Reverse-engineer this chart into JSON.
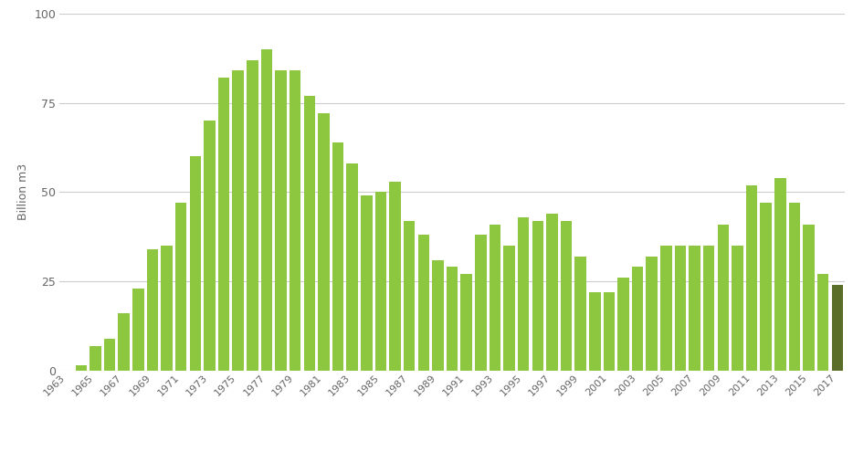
{
  "years": [
    1963,
    1964,
    1965,
    1966,
    1967,
    1968,
    1969,
    1970,
    1971,
    1972,
    1973,
    1974,
    1975,
    1976,
    1977,
    1978,
    1979,
    1980,
    1981,
    1982,
    1983,
    1984,
    1985,
    1986,
    1987,
    1988,
    1989,
    1990,
    1991,
    1992,
    1993,
    1994,
    1995,
    1996,
    1997,
    1998,
    1999,
    2000,
    2001,
    2002,
    2003,
    2004,
    2005,
    2006,
    2007,
    2008,
    2009,
    2010,
    2011,
    2012,
    2013,
    2014,
    2015,
    2016,
    2017
  ],
  "values": [
    0.1,
    1.5,
    7,
    9,
    16,
    23,
    34,
    35,
    47,
    60,
    70,
    82,
    84,
    87,
    90,
    84,
    84,
    77,
    72,
    64,
    58,
    49,
    50,
    53,
    42,
    38,
    31,
    29,
    27,
    38,
    41,
    35,
    43,
    42,
    44,
    42,
    32,
    22,
    22,
    26,
    29,
    32,
    35,
    35,
    35,
    35,
    41,
    35,
    52,
    47,
    54,
    47,
    41,
    27,
    24
  ],
  "bar_color": "#8dc63f",
  "last_bar_color": "#5a6e2a",
  "ylabel": "Billion m3",
  "ylim": [
    0,
    100
  ],
  "yticks": [
    0,
    25,
    50,
    75,
    100
  ],
  "background_color": "#ffffff",
  "grid_color": "#cccccc",
  "tick_label_color": "#666666",
  "bar_width": 0.8,
  "figwidth": 9.34,
  "figheight": 4.95,
  "dpi": 100
}
